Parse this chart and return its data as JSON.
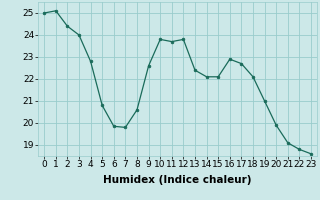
{
  "x": [
    0,
    1,
    2,
    3,
    4,
    5,
    6,
    7,
    8,
    9,
    10,
    11,
    12,
    13,
    14,
    15,
    16,
    17,
    18,
    19,
    20,
    21,
    22,
    23
  ],
  "y": [
    25.0,
    25.1,
    24.4,
    24.0,
    22.8,
    20.8,
    19.85,
    19.8,
    20.6,
    22.6,
    23.8,
    23.7,
    23.8,
    22.4,
    22.1,
    22.1,
    22.9,
    22.7,
    22.1,
    21.0,
    19.9,
    19.1,
    18.8,
    18.6
  ],
  "line_color": "#1a6b5a",
  "marker": "o",
  "marker_size": 2,
  "bg_color": "#cce8e8",
  "grid_color": "#99cccc",
  "xlabel": "Humidex (Indice chaleur)",
  "ylim": [
    18.5,
    25.5
  ],
  "xlim": [
    -0.5,
    23.5
  ],
  "yticks": [
    19,
    20,
    21,
    22,
    23,
    24,
    25
  ],
  "xticks": [
    0,
    1,
    2,
    3,
    4,
    5,
    6,
    7,
    8,
    9,
    10,
    11,
    12,
    13,
    14,
    15,
    16,
    17,
    18,
    19,
    20,
    21,
    22,
    23
  ],
  "tick_fontsize": 6.5,
  "xlabel_fontsize": 7.5
}
